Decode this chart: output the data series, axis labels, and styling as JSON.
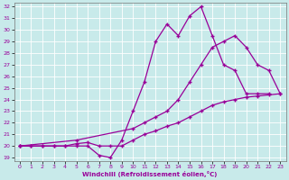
{
  "xlabel": "Windchill (Refroidissement éolien,°C)",
  "bg_color": "#c8eaea",
  "line_color": "#990099",
  "grid_color": "#ffffff",
  "xlim": [
    -0.5,
    23.5
  ],
  "ylim": [
    18.7,
    32.3
  ],
  "xticks": [
    0,
    1,
    2,
    3,
    4,
    5,
    6,
    7,
    8,
    9,
    10,
    11,
    12,
    13,
    14,
    15,
    16,
    17,
    18,
    19,
    20,
    21,
    22,
    23
  ],
  "yticks": [
    19,
    20,
    21,
    22,
    23,
    24,
    25,
    26,
    27,
    28,
    29,
    30,
    31,
    32
  ],
  "line1_x": [
    0,
    1,
    2,
    3,
    4,
    5,
    6,
    7,
    8,
    9,
    10,
    11,
    12,
    13,
    14,
    15,
    16,
    17,
    18,
    19,
    20,
    21,
    22
  ],
  "line1_y": [
    20,
    20,
    20,
    20,
    20,
    20,
    20,
    19.2,
    19.0,
    20.5,
    23,
    25.5,
    29.0,
    30.5,
    29.5,
    31.2,
    32,
    29.5,
    27.0,
    26.5,
    24.5,
    24.5,
    24.5
  ],
  "line2_x": [
    0,
    5,
    10,
    11,
    12,
    13,
    14,
    15,
    16,
    17,
    18,
    19,
    20,
    21,
    22,
    23
  ],
  "line2_y": [
    20,
    20.5,
    21.5,
    22,
    22.5,
    23,
    24,
    25.5,
    27,
    28.5,
    29,
    29.5,
    28.5,
    27,
    26.5,
    24.5
  ],
  "line3_x": [
    0,
    1,
    2,
    3,
    4,
    5,
    6,
    7,
    8,
    9,
    10,
    11,
    12,
    13,
    14,
    15,
    16,
    17,
    18,
    19,
    20,
    21,
    22,
    23
  ],
  "line3_y": [
    20,
    20,
    20,
    20,
    20,
    20.2,
    20.3,
    20,
    20,
    20,
    20.5,
    21,
    21.3,
    21.7,
    22,
    22.5,
    23,
    23.5,
    23.8,
    24,
    24.2,
    24.3,
    24.4,
    24.5
  ]
}
